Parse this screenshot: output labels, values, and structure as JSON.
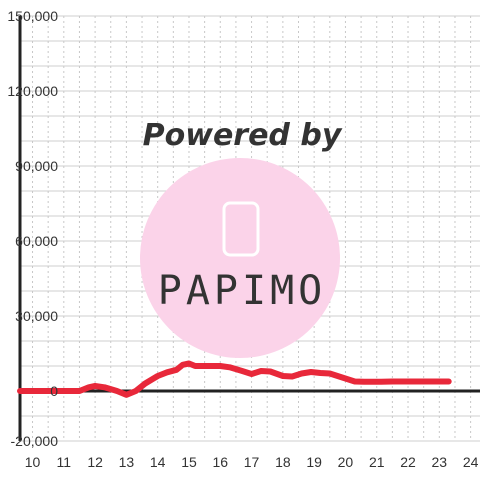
{
  "watermark": {
    "caption": "Powered by",
    "brand": "PAPIMO",
    "color": "#fbd3e9"
  },
  "chart_data": {
    "type": "line",
    "title": "",
    "xlabel": "",
    "ylabel": "",
    "xlim": [
      9.6,
      24.3
    ],
    "ylim": [
      -20000,
      150000
    ],
    "x_ticks": [
      10,
      11,
      12,
      13,
      14,
      15,
      16,
      17,
      18,
      19,
      20,
      21,
      22,
      23,
      24
    ],
    "x_tick_labels": [
      "10",
      "11",
      "12",
      "13",
      "14",
      "15",
      "16",
      "17",
      "18",
      "19",
      "20",
      "21",
      "22",
      "23",
      "24"
    ],
    "y_ticks": [
      -20000,
      0,
      30000,
      60000,
      90000,
      120000,
      150000
    ],
    "y_tick_labels": [
      "-20,000",
      "0",
      "30,000",
      "60,000",
      "90,000",
      "120,000",
      "150,000"
    ],
    "grid": true,
    "legend": "none",
    "series": [
      {
        "color": "#e8283a",
        "x": [
          9.6,
          10.5,
          11.0,
          11.5,
          11.8,
          12.0,
          12.3,
          12.7,
          13.0,
          13.3,
          13.6,
          14.0,
          14.3,
          14.6,
          14.8,
          15.0,
          15.2,
          15.5,
          16.0,
          16.3,
          16.7,
          17.0,
          17.3,
          17.6,
          18.0,
          18.3,
          18.6,
          18.9,
          19.2,
          19.5,
          20.0,
          20.3,
          20.6,
          21.0,
          21.5,
          22.0,
          22.5,
          23.0,
          23.3
        ],
        "y": [
          0,
          0,
          0,
          0,
          1500,
          2000,
          1500,
          0,
          -1500,
          0,
          3000,
          6000,
          7500,
          8500,
          10500,
          11000,
          10000,
          10000,
          10000,
          9500,
          8000,
          6800,
          8000,
          7800,
          6000,
          5800,
          7000,
          7600,
          7200,
          7000,
          5000,
          3800,
          3700,
          3700,
          3800,
          3800,
          3800,
          3800,
          3800
        ]
      }
    ]
  }
}
